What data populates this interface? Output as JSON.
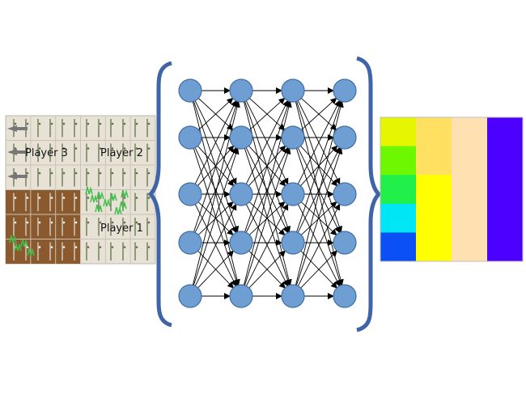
{
  "game_grid": {
    "labels": {
      "player3": "Player 3",
      "player2": "Player 2",
      "player1": "Player 1"
    },
    "colors": {
      "soil": "#8a5a2e",
      "light_ground": "#e8e2d6",
      "plant_stem": "#6a7a52",
      "grass": "#3fc04a"
    }
  },
  "network": {
    "layers": [
      5,
      5,
      5,
      5
    ],
    "node_color": "#6f9ed2",
    "node_stroke": "#3f6fa3",
    "brace_color": "#3f64a8",
    "edge_color": "#000000"
  },
  "output_grid": {
    "columns": [
      [
        "#e6f500",
        "#6df700",
        "#21ef4a",
        "#00e6f5",
        "#0a50f5"
      ],
      [
        "#ffe060",
        "#ffe060",
        "#ffff00",
        "#ffff00",
        "#ffff00"
      ],
      [
        "#ffe0b0",
        "#ffe0b0",
        "#ffe0b0",
        "#ffe0b0",
        "#ffe0b0"
      ],
      [
        "#4c00ff",
        "#4c00ff",
        "#4c00ff",
        "#4c00ff",
        "#4c00ff"
      ]
    ]
  }
}
